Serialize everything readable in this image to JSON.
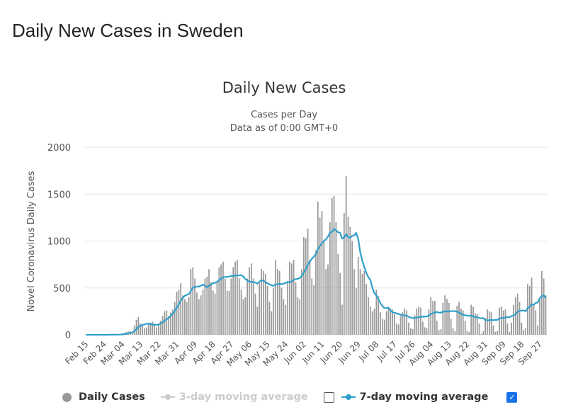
{
  "page": {
    "heading": "Daily New Cases in Sweden"
  },
  "legend": {
    "daily": "Daily Cases",
    "avg3": "3-day moving average",
    "avg3_checked": false,
    "avg7": "7-day moving average",
    "avg7_checked": true,
    "check_mark": "✓"
  },
  "colors": {
    "bars": "#999999",
    "avg7": "#2f9fcb",
    "avg3_disabled": "#cccccc",
    "grid": "#e6e6e6"
  },
  "chart_data": {
    "type": "bar",
    "title": "Daily New Cases",
    "subtitle": [
      "Cases per Day",
      "Data as of 0:00 GMT+0"
    ],
    "ylabel": "Novel Coronavirus Daily Cases",
    "xlabel": "",
    "ylim": [
      0,
      2000
    ],
    "yticks": [
      0,
      500,
      1000,
      1500,
      2000
    ],
    "grid": true,
    "legend_position": "bottom",
    "x_start": "2020-02-15",
    "x_end": "2020-09-30",
    "xtick_labels": [
      "Feb 15",
      "Feb 24",
      "Mar 04",
      "Mar 13",
      "Mar 22",
      "Mar 31",
      "Apr 09",
      "Apr 18",
      "Apr 27",
      "May 06",
      "May 15",
      "May 24",
      "Jun 02",
      "Jun 11",
      "Jun 20",
      "Jun 29",
      "Jul 08",
      "Jul 17",
      "Jul 26",
      "Aug 04",
      "Aug 13",
      "Aug 22",
      "Aug 31",
      "Sep 09",
      "Sep 18",
      "Sep 27"
    ],
    "series": [
      {
        "name": "Daily Cases",
        "type": "bar",
        "values": [
          0,
          0,
          0,
          0,
          0,
          0,
          0,
          0,
          0,
          1,
          0,
          1,
          2,
          0,
          1,
          7,
          1,
          2,
          16,
          20,
          30,
          35,
          40,
          27,
          100,
          160,
          190,
          120,
          100,
          70,
          80,
          110,
          130,
          140,
          120,
          80,
          110,
          150,
          200,
          250,
          260,
          200,
          240,
          270,
          350,
          460,
          480,
          550,
          420,
          380,
          350,
          400,
          700,
          720,
          600,
          450,
          380,
          420,
          480,
          600,
          620,
          700,
          560,
          470,
          440,
          560,
          720,
          750,
          780,
          600,
          470,
          470,
          600,
          720,
          780,
          800,
          600,
          480,
          380,
          400,
          600,
          720,
          760,
          600,
          440,
          300,
          550,
          700,
          680,
          650,
          520,
          350,
          250,
          500,
          800,
          700,
          680,
          500,
          380,
          320,
          560,
          780,
          760,
          800,
          560,
          400,
          380,
          700,
          1040,
          1030,
          1130,
          800,
          600,
          530,
          900,
          1420,
          1250,
          1320,
          1000,
          700,
          750,
          1200,
          1460,
          1480,
          1200,
          860,
          660,
          320,
          1300,
          1690,
          1260,
          1150,
          1000,
          700,
          500,
          830,
          700,
          650,
          680,
          540,
          400,
          300,
          250,
          280,
          480,
          410,
          240,
          170,
          160,
          250,
          300,
          280,
          270,
          220,
          120,
          110,
          200,
          240,
          280,
          260,
          130,
          70,
          60,
          210,
          280,
          300,
          290,
          140,
          80,
          70,
          270,
          400,
          360,
          360,
          150,
          50,
          60,
          340,
          420,
          380,
          340,
          170,
          70,
          40,
          310,
          350,
          280,
          260,
          150,
          40,
          30,
          320,
          300,
          230,
          220,
          120,
          10,
          40,
          180,
          270,
          250,
          240,
          100,
          30,
          40,
          290,
          300,
          260,
          270,
          120,
          30,
          130,
          320,
          400,
          440,
          350,
          130,
          50,
          70,
          540,
          520,
          610,
          320,
          260,
          100,
          380,
          680,
          600,
          420
        ]
      },
      {
        "name": "7-day moving average",
        "type": "line",
        "derived_from": "Daily Cases"
      }
    ]
  }
}
